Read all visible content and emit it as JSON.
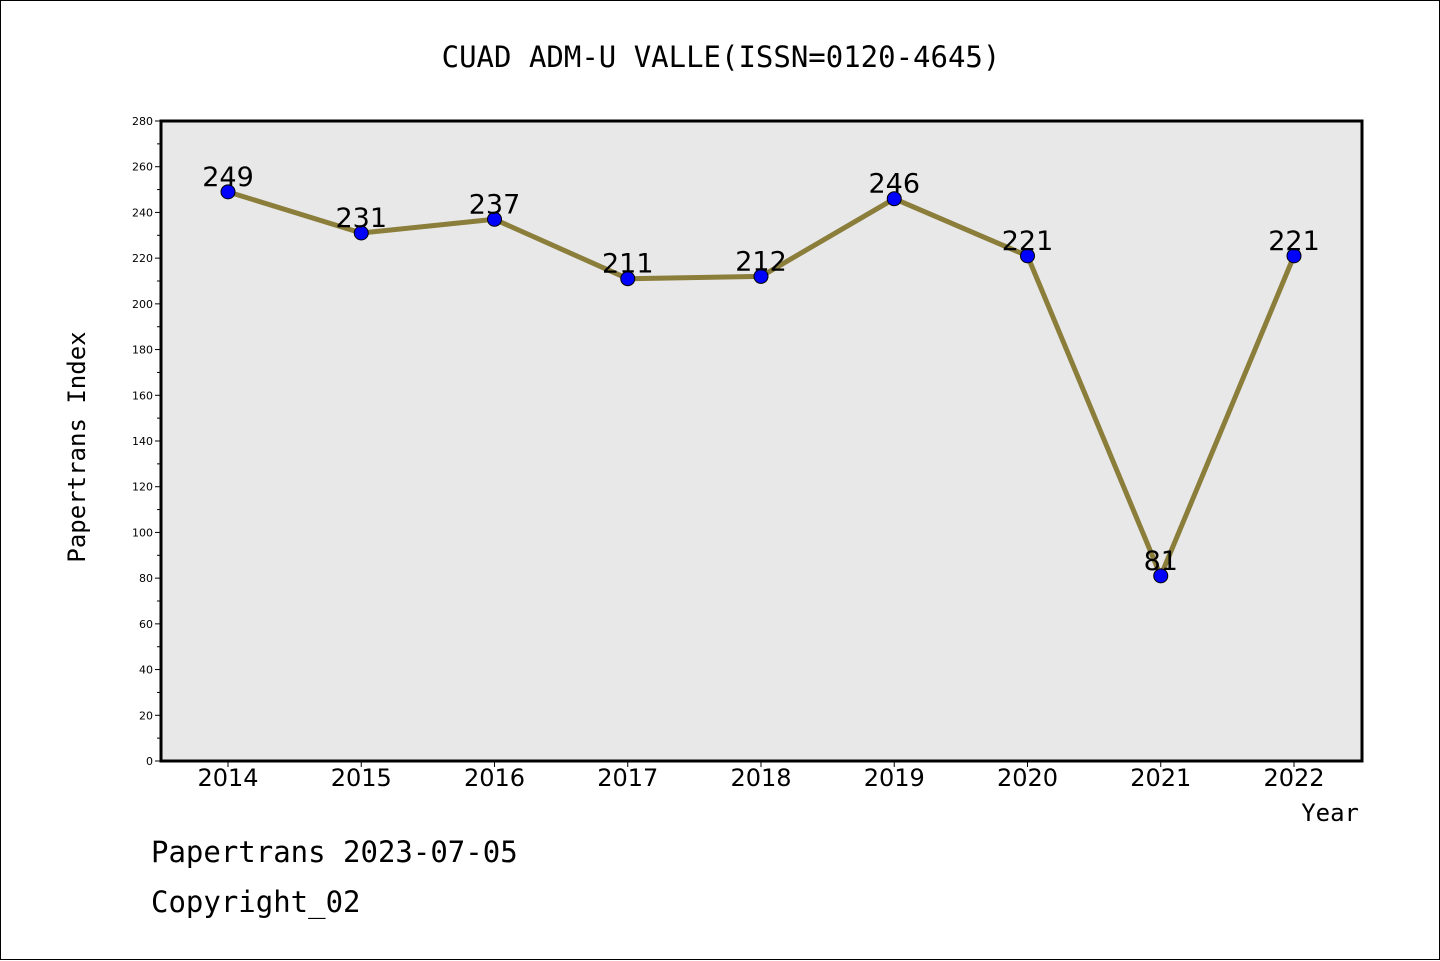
{
  "chart_data": {
    "type": "line",
    "title": "CUAD ADM-U VALLE(ISSN=0120-4645)",
    "xlabel": "Year",
    "ylabel": "Papertrans Index",
    "categories": [
      "2014",
      "2015",
      "2016",
      "2017",
      "2018",
      "2019",
      "2020",
      "2021",
      "2022"
    ],
    "values": [
      249,
      231,
      237,
      211,
      212,
      246,
      221,
      81,
      221
    ],
    "data_labels": [
      "249",
      "231",
      "237",
      "211",
      "212",
      "246",
      "221",
      "81",
      "221"
    ],
    "ylim": [
      0,
      280
    ],
    "yticks": [
      0,
      20,
      40,
      60,
      80,
      100,
      120,
      140,
      160,
      180,
      200,
      220,
      240,
      260,
      280
    ],
    "grid": false,
    "line_color": "#8B7D3A",
    "marker_color": "#0000FF",
    "plot_background": "#E8E8E8"
  },
  "footer": {
    "line1": "Papertrans 2023-07-05",
    "line2": "Copyright_02"
  }
}
